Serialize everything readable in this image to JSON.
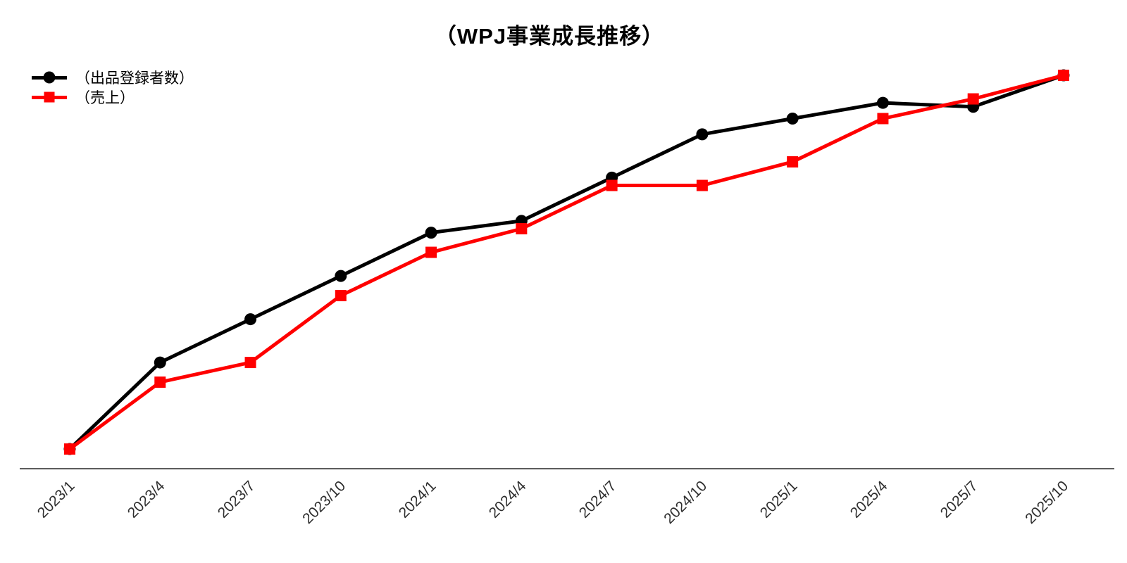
{
  "title": "（WPJ事業成長推移）",
  "chart_data": {
    "type": "line",
    "title": "（WPJ事業成長推移）",
    "categories": [
      "2023/1",
      "2023/4",
      "2023/7",
      "2023/10",
      "2024/1",
      "2024/4",
      "2024/7",
      "2024/10",
      "2025/1",
      "2025/4",
      "2025/7",
      "2025/10"
    ],
    "series": [
      {
        "name": "（出品登録者数）",
        "color": "#000000",
        "marker": "circle",
        "values": [
          5,
          27,
          38,
          49,
          60,
          63,
          74,
          85,
          89,
          93,
          92,
          100
        ]
      },
      {
        "name": "（売上）",
        "color": "#ff0000",
        "marker": "square",
        "values": [
          5,
          22,
          27,
          44,
          55,
          61,
          72,
          72,
          78,
          89,
          94,
          100
        ]
      }
    ],
    "xlabel": "",
    "ylabel": "",
    "ylim": [
      0,
      105
    ],
    "y_axis_visible": false,
    "gridlines": false,
    "legend_position": "top-left",
    "x_tick_rotation_deg": 45,
    "y_values_estimated": true,
    "y_units": "relative index (no y-axis shown)"
  }
}
